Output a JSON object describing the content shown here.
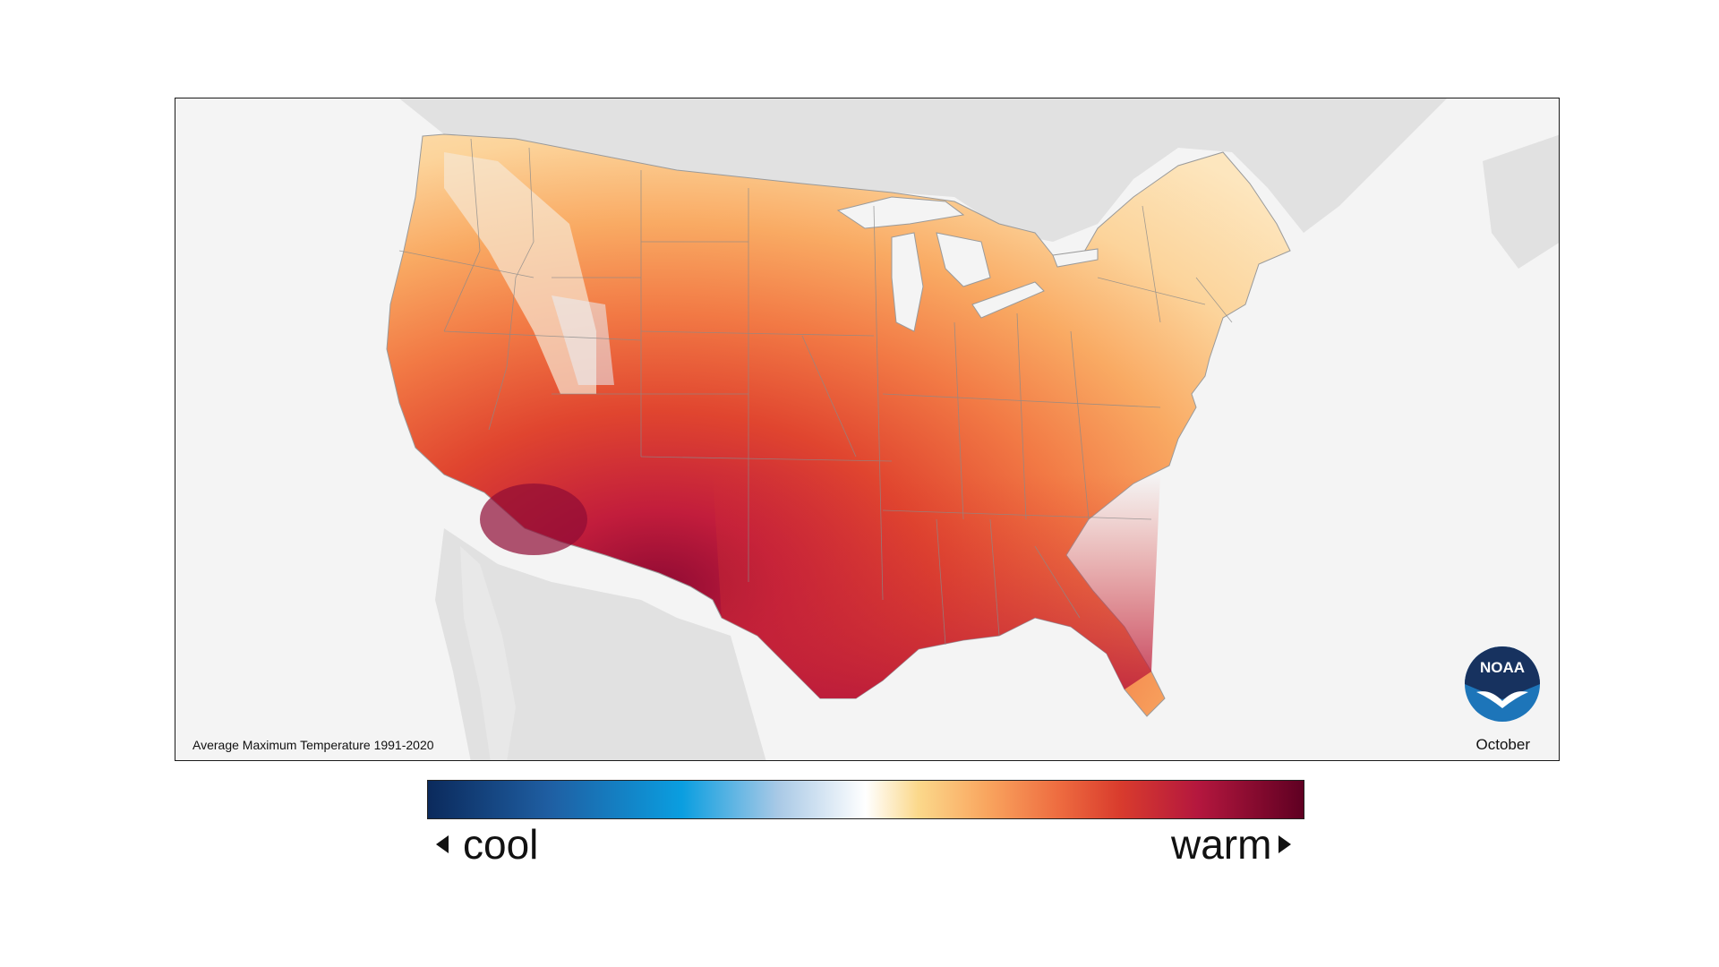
{
  "map": {
    "caption": "Average Maximum Temperature 1991-2020",
    "month": "October",
    "logo_text": "NOAA",
    "colors": {
      "background_water": "#f4f4f4",
      "neighbor_land": "#e1e1e1",
      "state_borders": "#8a8a8a"
    }
  },
  "legend": {
    "cool_label": "cool",
    "warm_label": "warm",
    "gradient_colors": [
      "#0b2a5c",
      "#1f5fa3",
      "#0a9ee0",
      "#a9c9e6",
      "#ffffff",
      "#fbd88b",
      "#f9a45e",
      "#ee6c40",
      "#d93c2d",
      "#b4173e",
      "#5f0022"
    ]
  }
}
